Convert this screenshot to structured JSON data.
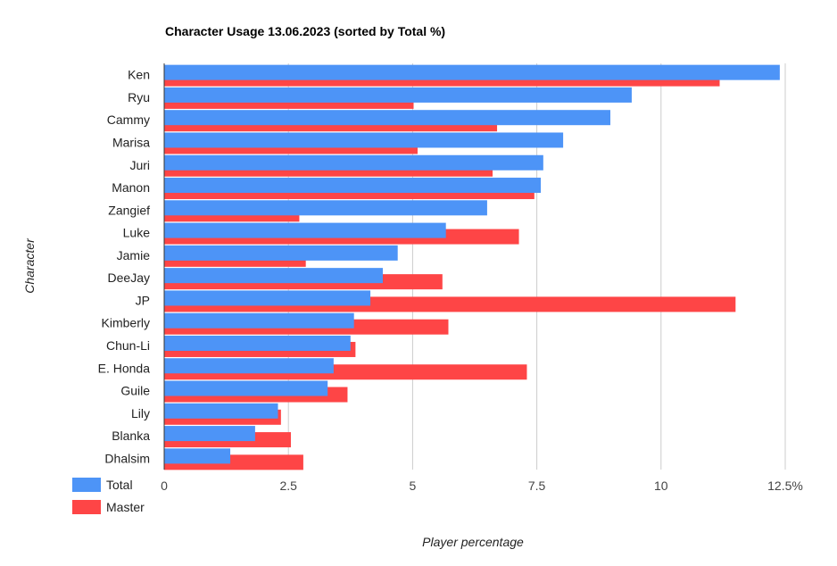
{
  "chart_data": {
    "type": "bar",
    "orientation": "horizontal",
    "title": "Character Usage 13.06.2023 (sorted by Total %)",
    "xlabel": "Player percentage",
    "ylabel": "Character",
    "xlim": [
      0,
      12.5
    ],
    "x_ticks": [
      0,
      2.5,
      5,
      7.5,
      10,
      12.5
    ],
    "x_tick_labels": [
      "0",
      "2.5",
      "5",
      "7.5",
      "10",
      "12.5%"
    ],
    "grid": true,
    "legend_position": "bottom-left",
    "categories": [
      "Ken",
      "Ryu",
      "Cammy",
      "Marisa",
      "Juri",
      "Manon",
      "Zangief",
      "Luke",
      "Jamie",
      "DeeJay",
      "JP",
      "Kimberly",
      "Chun-Li",
      "E. Honda",
      "Guile",
      "Lily",
      "Blanka",
      "Dhalsim"
    ],
    "series": [
      {
        "name": "Total",
        "color": "#4d94f7",
        "values": [
          12.39,
          9.41,
          8.98,
          8.03,
          7.63,
          7.58,
          6.5,
          5.67,
          4.7,
          4.4,
          4.15,
          3.82,
          3.75,
          3.41,
          3.29,
          2.29,
          1.83,
          1.33
        ]
      },
      {
        "name": "Master",
        "color": "#fe4546",
        "values": [
          11.18,
          5.02,
          6.7,
          5.1,
          6.61,
          7.45,
          2.72,
          7.14,
          2.85,
          5.6,
          11.5,
          5.72,
          3.85,
          7.3,
          3.69,
          2.35,
          2.55,
          2.8
        ]
      }
    ]
  }
}
